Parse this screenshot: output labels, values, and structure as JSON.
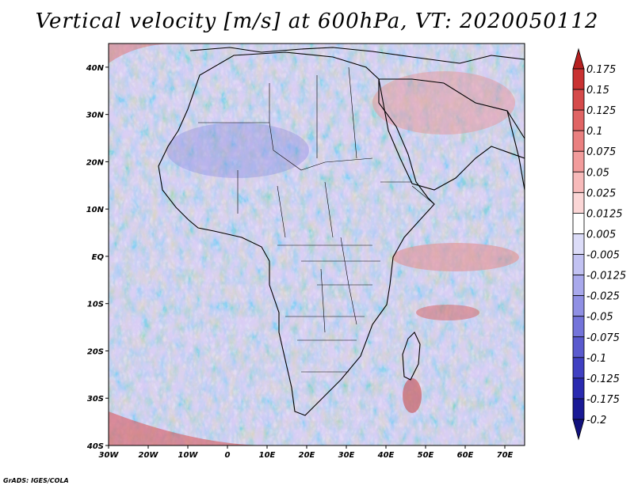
{
  "title": "Vertical velocity [m/s] at 600hPa, VT: 2020050112",
  "footer": "GrADS: IGES/COLA",
  "map": {
    "variable": "Vertical velocity",
    "units": "m/s",
    "level": "600hPa",
    "valid_time": "2020050112",
    "lon_range": [
      -30,
      75
    ],
    "lat_range": [
      -40,
      45
    ],
    "x_ticks": [
      "30W",
      "20W",
      "10W",
      "0",
      "10E",
      "20E",
      "30E",
      "40E",
      "50E",
      "60E",
      "70E"
    ],
    "y_ticks": [
      "40N",
      "30N",
      "20N",
      "10N",
      "EQ",
      "10S",
      "20S",
      "30S",
      "40S"
    ]
  },
  "colorbar": {
    "levels": [
      "0.175",
      "0.15",
      "0.125",
      "0.1",
      "0.075",
      "0.05",
      "0.025",
      "0.0125",
      "0.005",
      "-0.005",
      "-0.0125",
      "-0.025",
      "-0.05",
      "-0.075",
      "-0.1",
      "-0.125",
      "-0.175",
      "-0.2"
    ],
    "colors": [
      "#b52020",
      "#c93232",
      "#d54a4a",
      "#e06464",
      "#ea8080",
      "#f29c9c",
      "#f7baba",
      "#fbd6d6",
      "#ffffff",
      "#dcdcf8",
      "#c2c2f2",
      "#a9a9ec",
      "#9090e4",
      "#7474da",
      "#5a5ace",
      "#4040c2",
      "#2a2ab0",
      "#1a1a96",
      "#12127e"
    ]
  },
  "colors": {
    "ocean_base": "#c9c9f0",
    "land_base": "#d6d4ef",
    "coast": "#000000"
  }
}
